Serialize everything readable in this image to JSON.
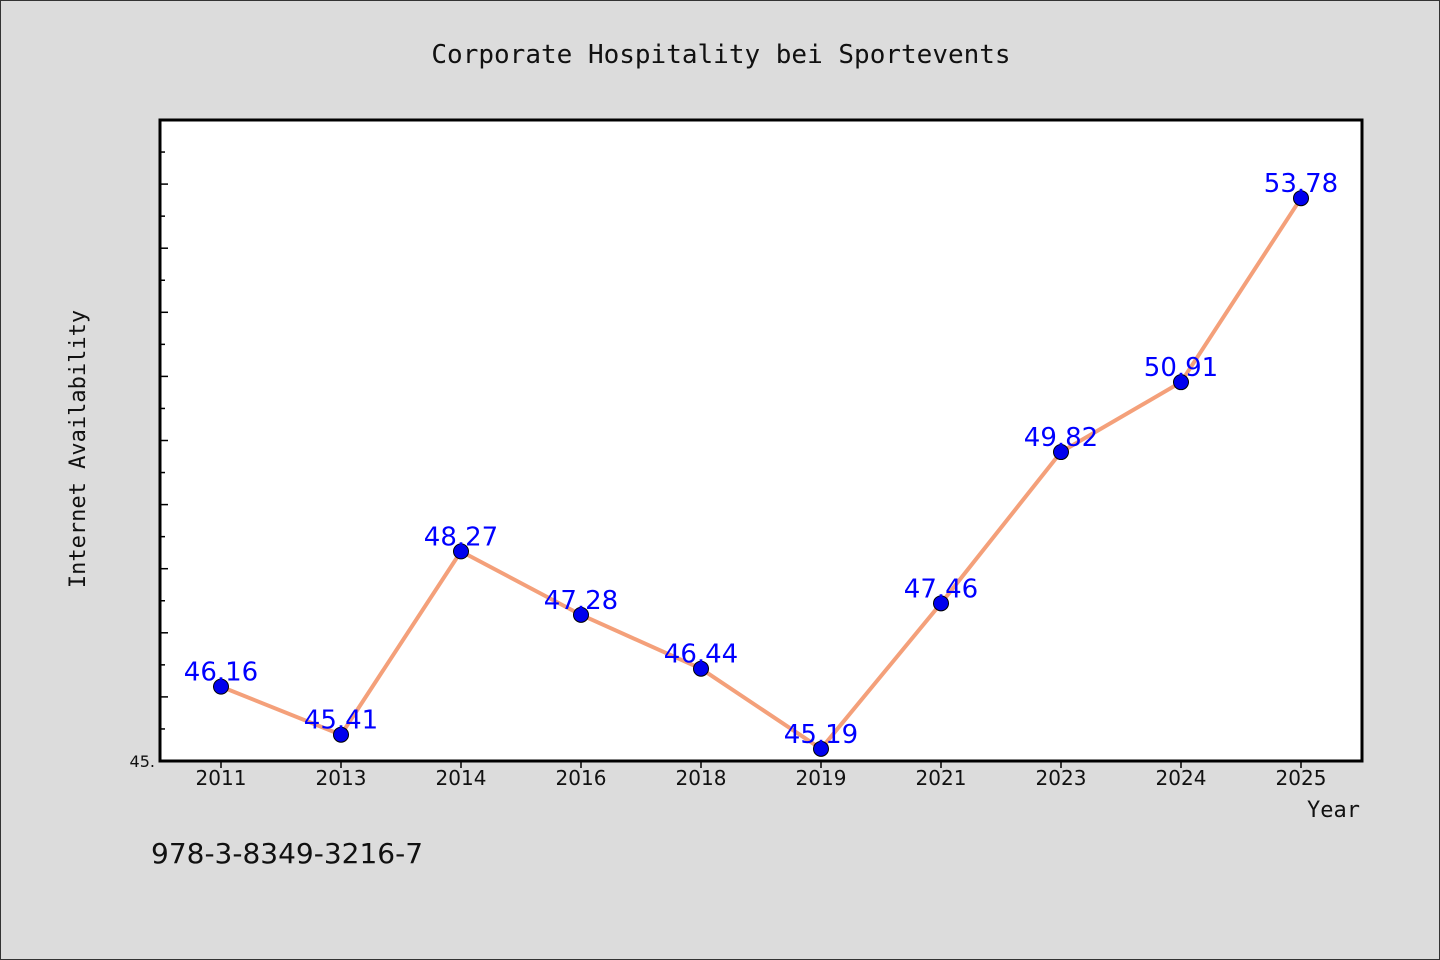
{
  "chart_data": {
    "type": "line",
    "title": "Corporate Hospitality bei Sportevents",
    "xlabel": "Year",
    "ylabel": "Internet Availability",
    "categories": [
      "2011",
      "2013",
      "2014",
      "2016",
      "2018",
      "2019",
      "2021",
      "2023",
      "2024",
      "2025"
    ],
    "series": [
      {
        "values": [
          46.16,
          45.41,
          48.27,
          47.28,
          46.44,
          45.19,
          47.46,
          49.82,
          50.91,
          53.78
        ]
      }
    ],
    "data_labels": [
      "46.16",
      "45.41",
      "48.27",
      "47.28",
      "46.44",
      "45.19",
      "47.46",
      "49.82",
      "50.91",
      "53.78"
    ],
    "y_tick_label": "45.",
    "ylim": [
      45.0,
      55.0
    ],
    "grid": false,
    "legend": "none",
    "colors": {
      "line": "#f4a07a",
      "marker": "#0000ee",
      "label": "#0000ff",
      "plot_bg": "#ffffff",
      "page_bg": "#dcdcdc"
    }
  },
  "footer": {
    "isbn": "978-3-8349-3216-7"
  }
}
